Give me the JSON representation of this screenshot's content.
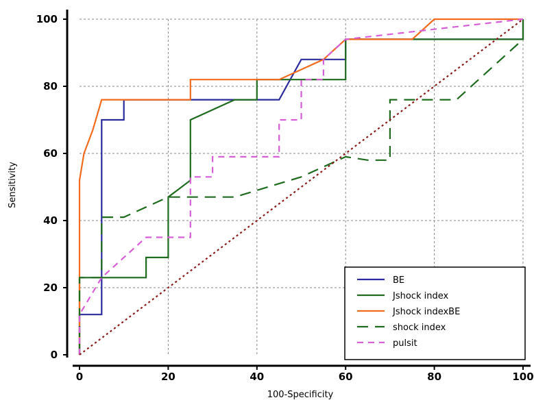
{
  "chart_data": {
    "type": "line",
    "title": "",
    "xlabel": "100-Specificity",
    "ylabel": "Sensitivity",
    "xlim": [
      0,
      100
    ],
    "ylim": [
      0,
      100
    ],
    "xticks": [
      0,
      20,
      40,
      60,
      80,
      100
    ],
    "yticks": [
      0,
      20,
      40,
      60,
      80,
      100
    ],
    "grid": true,
    "legend_position": "bottom-right",
    "diagonal_reference": true,
    "series": [
      {
        "name": "BE",
        "color": "#2b2b9e",
        "dash": "solid",
        "x": [
          0,
          0,
          5,
          5,
          10,
          10,
          25,
          25,
          45,
          50,
          60,
          60,
          90,
          90,
          100,
          100
        ],
        "y": [
          0,
          12,
          12,
          70,
          70,
          76,
          76,
          76,
          76,
          88,
          88,
          94,
          94,
          94,
          94,
          100
        ]
      },
      {
        "name": "Jshock index",
        "color": "#1e6b1e",
        "dash": "solid",
        "x": [
          0,
          0,
          5,
          15,
          15,
          20,
          20,
          25,
          25,
          35,
          40,
          40,
          50,
          60,
          60,
          100,
          100
        ],
        "y": [
          0,
          23,
          23,
          23,
          29,
          29,
          47,
          52,
          70,
          76,
          76,
          82,
          82,
          82,
          94,
          94,
          100
        ]
      },
      {
        "name": "Jshock indexBE",
        "color": "#f26a1b",
        "dash": "solid",
        "x": [
          0,
          0,
          1,
          3,
          5,
          25,
          25,
          45,
          55,
          60,
          75,
          80,
          100
        ],
        "y": [
          0,
          52,
          60,
          67,
          76,
          76,
          82,
          82,
          88,
          94,
          94,
          100,
          100
        ]
      },
      {
        "name": "shock index",
        "color": "#1e6b1e",
        "dash": "long-dash",
        "x": [
          0,
          0,
          5,
          5,
          10,
          20,
          35,
          50,
          60,
          65,
          70,
          70,
          85,
          95,
          100
        ],
        "y": [
          0,
          23,
          23,
          41,
          41,
          47,
          47,
          53,
          59,
          58,
          58,
          76,
          76,
          88,
          94
        ]
      },
      {
        "name": "pulsit",
        "color": "#d65ed6",
        "dash": "dash",
        "x": [
          0,
          0,
          5,
          15,
          25,
          25,
          30,
          30,
          45,
          45,
          50,
          50,
          55,
          55,
          60,
          100
        ],
        "y": [
          0,
          12,
          23,
          35,
          35,
          53,
          53,
          59,
          59,
          70,
          70,
          82,
          82,
          88,
          94,
          100
        ]
      },
      {
        "name": "",
        "color": "#8b1a1a",
        "dash": "dot",
        "x": [
          0,
          100
        ],
        "y": [
          0,
          100
        ]
      }
    ]
  }
}
